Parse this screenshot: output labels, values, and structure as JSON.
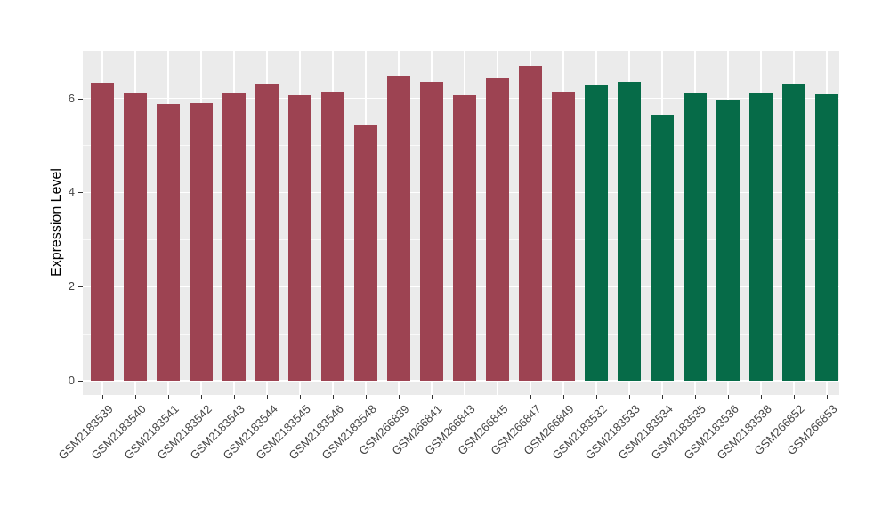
{
  "chart_data": {
    "type": "bar",
    "title": "",
    "xlabel": "",
    "ylabel": "Expression Level",
    "ylim": [
      0,
      7.0
    ],
    "yticks": [
      0,
      2,
      4,
      6
    ],
    "minor_gridlines": [
      1,
      3,
      5
    ],
    "grid": "on",
    "legend": "none",
    "panel_background": "#EBEBEB",
    "gridline_color": "#FFFFFF",
    "categories": [
      "GSM2183539",
      "GSM2183540",
      "GSM2183541",
      "GSM2183542",
      "GSM2183543",
      "GSM2183544",
      "GSM2183545",
      "GSM2183546",
      "GSM2183548",
      "GSM266839",
      "GSM266841",
      "GSM266843",
      "GSM266845",
      "GSM266847",
      "GSM266849",
      "GSM2183532",
      "GSM2183533",
      "GSM2183534",
      "GSM2183535",
      "GSM2183536",
      "GSM2183538",
      "GSM266852",
      "GSM266853"
    ],
    "values": [
      6.34,
      6.11,
      5.87,
      5.9,
      6.11,
      6.31,
      6.07,
      6.14,
      5.44,
      6.48,
      6.36,
      6.07,
      6.42,
      6.69,
      6.15,
      6.3,
      6.35,
      5.65,
      6.12,
      5.97,
      6.12,
      6.31,
      6.08
    ],
    "bar_colors": [
      "#9D4352",
      "#9D4352",
      "#9D4352",
      "#9D4352",
      "#9D4352",
      "#9D4352",
      "#9D4352",
      "#9D4352",
      "#9D4352",
      "#9D4352",
      "#9D4352",
      "#9D4352",
      "#9D4352",
      "#9D4352",
      "#9D4352",
      "#066B48",
      "#066B48",
      "#066B48",
      "#066B48",
      "#066B48",
      "#066B48",
      "#066B48",
      "#066B48"
    ],
    "group_colors": {
      "group1": "#9D4352",
      "group2": "#066B48"
    }
  }
}
